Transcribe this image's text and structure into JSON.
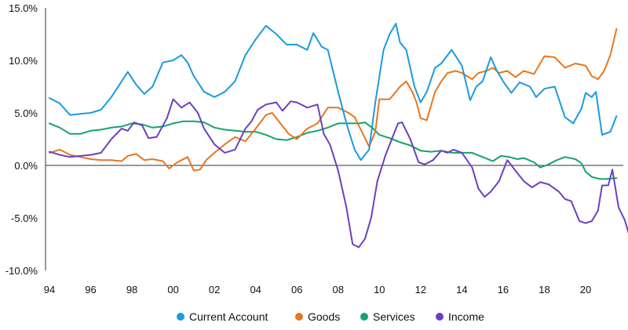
{
  "chart_data": {
    "type": "line",
    "title": "",
    "xlabel": "",
    "ylabel": "",
    "xlim": [
      1994,
      2021.8
    ],
    "ylim": [
      -10,
      15
    ],
    "y_ticks": [
      15,
      10,
      5,
      0,
      -5,
      -10
    ],
    "y_tick_labels": [
      "15.0%",
      "10.0%",
      "5.0%",
      "0.0%",
      "-5.0%",
      "-10.0%"
    ],
    "x_ticks": [
      1994,
      1996,
      1998,
      2000,
      2002,
      2004,
      2006,
      2008,
      2010,
      2012,
      2014,
      2016,
      2018,
      2020
    ],
    "x_tick_labels": [
      "94",
      "96",
      "98",
      "00",
      "02",
      "04",
      "06",
      "08",
      "10",
      "12",
      "14",
      "16",
      "18",
      "20"
    ],
    "grid": false,
    "zero_line": true,
    "legend_position": "bottom-center",
    "series": [
      {
        "name": "Current Account",
        "color": "#1a9be0",
        "points": [
          [
            1994.0,
            6.4
          ],
          [
            1994.5,
            5.9
          ],
          [
            1995.0,
            4.8
          ],
          [
            1995.5,
            4.9
          ],
          [
            1996.0,
            5.0
          ],
          [
            1996.5,
            5.3
          ],
          [
            1997.0,
            6.5
          ],
          [
            1997.5,
            8.0
          ],
          [
            1997.8,
            8.9
          ],
          [
            1998.2,
            7.7
          ],
          [
            1998.6,
            6.8
          ],
          [
            1999.0,
            7.5
          ],
          [
            1999.5,
            9.8
          ],
          [
            2000.0,
            10.0
          ],
          [
            2000.4,
            10.5
          ],
          [
            2000.7,
            9.8
          ],
          [
            2001.0,
            8.5
          ],
          [
            2001.5,
            7.0
          ],
          [
            2002.0,
            6.5
          ],
          [
            2002.5,
            7.0
          ],
          [
            2003.0,
            8.0
          ],
          [
            2003.5,
            10.5
          ],
          [
            2004.0,
            12.0
          ],
          [
            2004.5,
            13.3
          ],
          [
            2005.0,
            12.5
          ],
          [
            2005.5,
            11.5
          ],
          [
            2006.0,
            11.5
          ],
          [
            2006.5,
            11.0
          ],
          [
            2006.8,
            12.6
          ],
          [
            2007.2,
            11.3
          ],
          [
            2007.5,
            11.0
          ],
          [
            2008.0,
            7.0
          ],
          [
            2008.4,
            4.0
          ],
          [
            2008.8,
            1.5
          ],
          [
            2009.1,
            0.5
          ],
          [
            2009.5,
            1.5
          ],
          [
            2009.8,
            6.0
          ],
          [
            2010.2,
            11.0
          ],
          [
            2010.5,
            12.5
          ],
          [
            2010.8,
            13.5
          ],
          [
            2011.0,
            11.7
          ],
          [
            2011.3,
            11.0
          ],
          [
            2011.7,
            7.5
          ],
          [
            2012.0,
            6.0
          ],
          [
            2012.3,
            7.0
          ],
          [
            2012.7,
            9.3
          ],
          [
            2013.0,
            9.7
          ],
          [
            2013.5,
            11.0
          ],
          [
            2014.0,
            9.5
          ],
          [
            2014.4,
            6.2
          ],
          [
            2014.7,
            7.5
          ],
          [
            2015.0,
            8.0
          ],
          [
            2015.4,
            10.3
          ],
          [
            2015.7,
            9.0
          ],
          [
            2016.0,
            8.0
          ],
          [
            2016.4,
            6.9
          ],
          [
            2016.8,
            7.9
          ],
          [
            2017.3,
            7.5
          ],
          [
            2017.6,
            6.5
          ],
          [
            2018.0,
            7.3
          ],
          [
            2018.5,
            7.5
          ],
          [
            2019.0,
            4.6
          ],
          [
            2019.4,
            4.0
          ],
          [
            2019.8,
            5.4
          ],
          [
            2020.0,
            6.9
          ],
          [
            2020.3,
            6.5
          ],
          [
            2020.5,
            7.0
          ],
          [
            2020.8,
            2.9
          ],
          [
            2021.2,
            3.2
          ],
          [
            2021.5,
            4.7
          ]
        ]
      },
      {
        "name": "Goods",
        "color": "#e8761e",
        "points": [
          [
            1994.0,
            1.2
          ],
          [
            1994.5,
            1.5
          ],
          [
            1995.0,
            1.0
          ],
          [
            1995.5,
            0.8
          ],
          [
            1996.0,
            0.6
          ],
          [
            1996.5,
            0.5
          ],
          [
            1997.0,
            0.5
          ],
          [
            1997.5,
            0.4
          ],
          [
            1997.8,
            0.9
          ],
          [
            1998.2,
            1.1
          ],
          [
            1998.6,
            0.5
          ],
          [
            1999.0,
            0.6
          ],
          [
            1999.5,
            0.4
          ],
          [
            1999.8,
            -0.3
          ],
          [
            2000.2,
            0.3
          ],
          [
            2000.7,
            0.8
          ],
          [
            2001.0,
            -0.5
          ],
          [
            2001.3,
            -0.4
          ],
          [
            2001.6,
            0.5
          ],
          [
            2002.0,
            1.2
          ],
          [
            2002.5,
            2.0
          ],
          [
            2003.0,
            2.7
          ],
          [
            2003.5,
            2.3
          ],
          [
            2004.0,
            3.5
          ],
          [
            2004.5,
            4.8
          ],
          [
            2004.8,
            5.0
          ],
          [
            2005.2,
            4.0
          ],
          [
            2005.6,
            3.0
          ],
          [
            2006.0,
            2.5
          ],
          [
            2006.5,
            3.5
          ],
          [
            2007.0,
            4.0
          ],
          [
            2007.5,
            5.5
          ],
          [
            2008.0,
            5.5
          ],
          [
            2008.5,
            5.0
          ],
          [
            2008.8,
            4.6
          ],
          [
            2009.2,
            3.0
          ],
          [
            2009.5,
            1.8
          ],
          [
            2009.8,
            3.2
          ],
          [
            2010.0,
            6.3
          ],
          [
            2010.5,
            6.3
          ],
          [
            2010.8,
            7.0
          ],
          [
            2011.0,
            7.5
          ],
          [
            2011.3,
            8.0
          ],
          [
            2011.6,
            7.0
          ],
          [
            2011.8,
            6.0
          ],
          [
            2012.0,
            4.5
          ],
          [
            2012.3,
            4.3
          ],
          [
            2012.7,
            7.0
          ],
          [
            2013.0,
            8.0
          ],
          [
            2013.3,
            8.8
          ],
          [
            2013.7,
            9.0
          ],
          [
            2014.0,
            8.8
          ],
          [
            2014.5,
            8.2
          ],
          [
            2014.8,
            8.8
          ],
          [
            2015.2,
            9.0
          ],
          [
            2015.5,
            9.3
          ],
          [
            2015.8,
            8.8
          ],
          [
            2016.2,
            9.0
          ],
          [
            2016.6,
            8.4
          ],
          [
            2017.0,
            9.0
          ],
          [
            2017.5,
            8.7
          ],
          [
            2018.0,
            10.4
          ],
          [
            2018.5,
            10.3
          ],
          [
            2019.0,
            9.3
          ],
          [
            2019.5,
            9.7
          ],
          [
            2020.0,
            9.5
          ],
          [
            2020.3,
            8.5
          ],
          [
            2020.6,
            8.2
          ],
          [
            2020.9,
            9.0
          ],
          [
            2021.2,
            10.5
          ],
          [
            2021.5,
            13.0
          ]
        ]
      },
      {
        "name": "Services",
        "color": "#14a46c",
        "points": [
          [
            1994.0,
            4.0
          ],
          [
            1994.5,
            3.6
          ],
          [
            1995.0,
            3.0
          ],
          [
            1995.5,
            3.0
          ],
          [
            1996.0,
            3.3
          ],
          [
            1996.5,
            3.4
          ],
          [
            1997.0,
            3.6
          ],
          [
            1997.5,
            3.7
          ],
          [
            1998.0,
            4.0
          ],
          [
            1998.5,
            3.9
          ],
          [
            1999.0,
            3.6
          ],
          [
            1999.5,
            3.7
          ],
          [
            2000.0,
            4.0
          ],
          [
            2000.5,
            4.2
          ],
          [
            2001.0,
            4.2
          ],
          [
            2001.5,
            4.1
          ],
          [
            2002.0,
            3.6
          ],
          [
            2002.5,
            3.4
          ],
          [
            2003.0,
            3.3
          ],
          [
            2003.5,
            3.2
          ],
          [
            2004.0,
            3.2
          ],
          [
            2004.5,
            2.9
          ],
          [
            2005.0,
            2.5
          ],
          [
            2005.5,
            2.4
          ],
          [
            2006.0,
            2.7
          ],
          [
            2006.5,
            3.1
          ],
          [
            2007.0,
            3.3
          ],
          [
            2007.5,
            3.6
          ],
          [
            2008.0,
            4.0
          ],
          [
            2008.5,
            4.0
          ],
          [
            2009.0,
            4.0
          ],
          [
            2009.3,
            4.1
          ],
          [
            2009.7,
            3.5
          ],
          [
            2010.0,
            2.9
          ],
          [
            2010.5,
            2.6
          ],
          [
            2011.0,
            2.2
          ],
          [
            2011.5,
            1.9
          ],
          [
            2012.0,
            1.4
          ],
          [
            2012.5,
            1.3
          ],
          [
            2013.0,
            1.4
          ],
          [
            2013.5,
            1.2
          ],
          [
            2014.0,
            1.2
          ],
          [
            2014.5,
            1.2
          ],
          [
            2015.0,
            0.8
          ],
          [
            2015.5,
            0.4
          ],
          [
            2015.9,
            0.9
          ],
          [
            2016.3,
            0.8
          ],
          [
            2016.7,
            0.6
          ],
          [
            2017.0,
            0.7
          ],
          [
            2017.5,
            0.3
          ],
          [
            2017.8,
            -0.2
          ],
          [
            2018.2,
            0.1
          ],
          [
            2018.6,
            0.5
          ],
          [
            2019.0,
            0.8
          ],
          [
            2019.5,
            0.6
          ],
          [
            2019.8,
            0.2
          ],
          [
            2020.0,
            -0.6
          ],
          [
            2020.3,
            -1.1
          ],
          [
            2020.7,
            -1.3
          ],
          [
            2021.0,
            -1.3
          ],
          [
            2021.5,
            -1.2
          ]
        ]
      },
      {
        "name": "Income",
        "color": "#6d3fc0",
        "points": [
          [
            1994.0,
            1.3
          ],
          [
            1994.5,
            1.0
          ],
          [
            1995.0,
            0.8
          ],
          [
            1995.5,
            0.9
          ],
          [
            1996.0,
            1.0
          ],
          [
            1996.5,
            1.2
          ],
          [
            1997.0,
            2.5
          ],
          [
            1997.5,
            3.5
          ],
          [
            1997.8,
            3.3
          ],
          [
            1998.1,
            4.1
          ],
          [
            1998.5,
            3.8
          ],
          [
            1998.8,
            2.6
          ],
          [
            1999.2,
            2.7
          ],
          [
            1999.7,
            4.5
          ],
          [
            2000.0,
            6.3
          ],
          [
            2000.4,
            5.5
          ],
          [
            2000.8,
            6.0
          ],
          [
            2001.2,
            5.0
          ],
          [
            2001.5,
            3.5
          ],
          [
            2002.0,
            2.0
          ],
          [
            2002.5,
            1.2
          ],
          [
            2003.0,
            1.5
          ],
          [
            2003.5,
            3.5
          ],
          [
            2003.8,
            4.2
          ],
          [
            2004.1,
            5.3
          ],
          [
            2004.5,
            5.8
          ],
          [
            2005.0,
            6.0
          ],
          [
            2005.3,
            5.2
          ],
          [
            2005.7,
            6.1
          ],
          [
            2006.0,
            6.0
          ],
          [
            2006.5,
            5.5
          ],
          [
            2007.0,
            5.8
          ],
          [
            2007.3,
            3.0
          ],
          [
            2007.6,
            2.0
          ],
          [
            2008.0,
            -0.5
          ],
          [
            2008.4,
            -4.0
          ],
          [
            2008.7,
            -7.5
          ],
          [
            2009.0,
            -7.8
          ],
          [
            2009.3,
            -7.0
          ],
          [
            2009.6,
            -5.0
          ],
          [
            2009.9,
            -1.5
          ],
          [
            2010.3,
            1.0
          ],
          [
            2010.6,
            2.5
          ],
          [
            2010.9,
            4.0
          ],
          [
            2011.1,
            4.1
          ],
          [
            2011.5,
            2.5
          ],
          [
            2011.9,
            0.3
          ],
          [
            2012.2,
            0.1
          ],
          [
            2012.6,
            0.5
          ],
          [
            2013.0,
            1.4
          ],
          [
            2013.3,
            1.2
          ],
          [
            2013.6,
            1.5
          ],
          [
            2014.0,
            1.2
          ],
          [
            2014.5,
            -0.2
          ],
          [
            2014.8,
            -2.2
          ],
          [
            2015.1,
            -3.0
          ],
          [
            2015.4,
            -2.5
          ],
          [
            2015.8,
            -1.5
          ],
          [
            2016.2,
            0.5
          ],
          [
            2016.6,
            -0.5
          ],
          [
            2017.0,
            -1.5
          ],
          [
            2017.4,
            -2.1
          ],
          [
            2017.8,
            -1.6
          ],
          [
            2018.2,
            -1.8
          ],
          [
            2018.7,
            -2.5
          ],
          [
            2019.0,
            -3.2
          ],
          [
            2019.3,
            -3.4
          ],
          [
            2019.7,
            -5.3
          ],
          [
            2020.0,
            -5.5
          ],
          [
            2020.3,
            -5.3
          ],
          [
            2020.6,
            -4.3
          ],
          [
            2020.8,
            -1.9
          ],
          [
            2021.1,
            -1.9
          ],
          [
            2021.3,
            -0.4
          ],
          [
            2021.6,
            -4.0
          ],
          [
            2021.9,
            -5.2
          ],
          [
            2022.2,
            -7.2
          ]
        ]
      }
    ]
  }
}
